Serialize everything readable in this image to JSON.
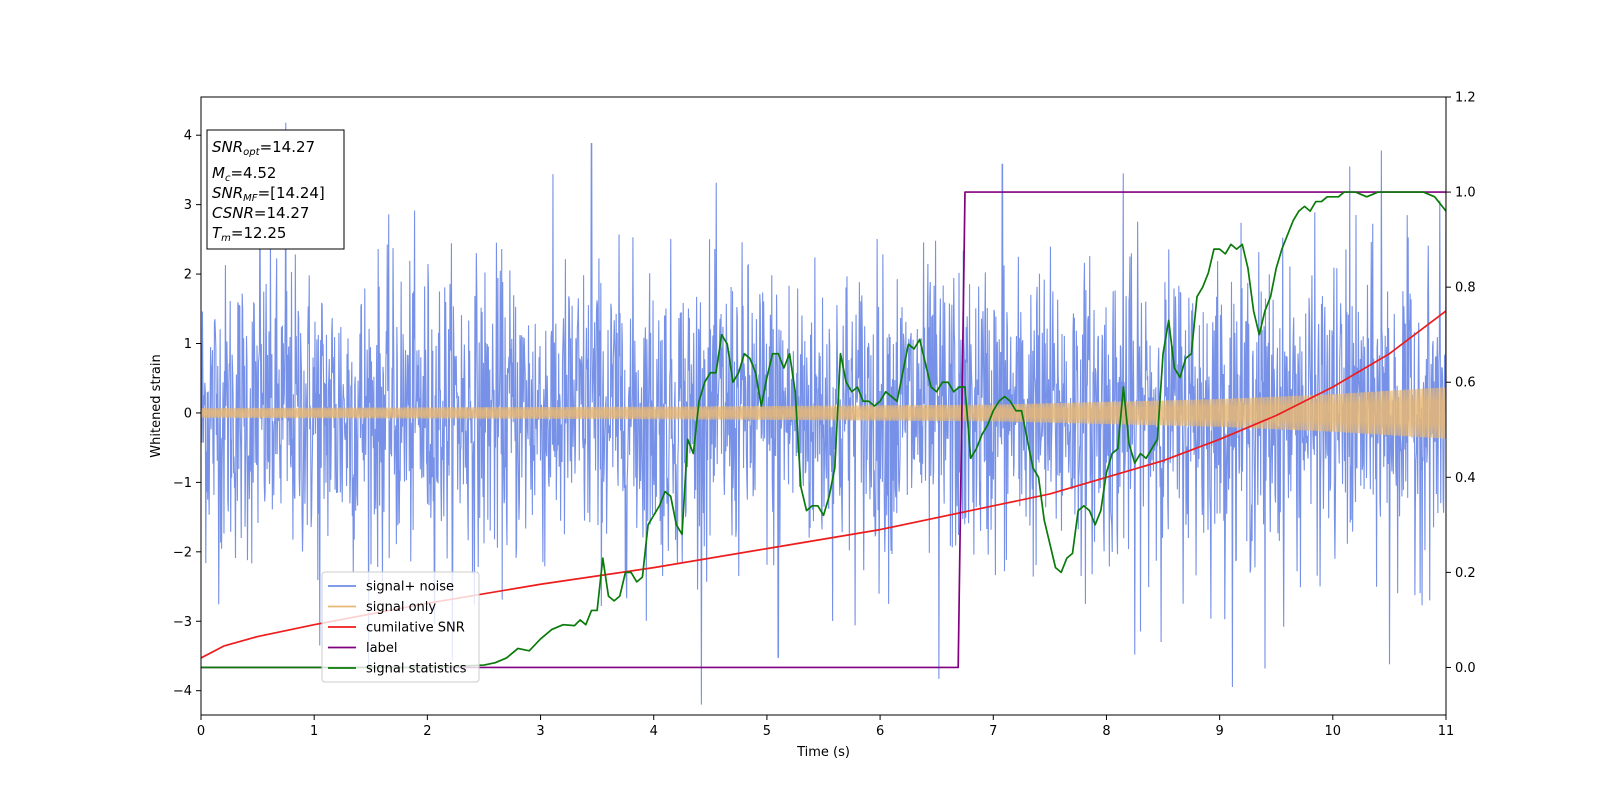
{
  "chart_data": {
    "type": "line",
    "xlabel": "Time (s)",
    "ylabel": "Whitened strain",
    "xlim": [
      0,
      11
    ],
    "ylim": [
      -4.35,
      4.55
    ],
    "y2lim": [
      -0.1,
      1.2
    ],
    "x_ticks": [
      "0",
      "1",
      "2",
      "3",
      "4",
      "5",
      "6",
      "7",
      "8",
      "9",
      "10",
      "11"
    ],
    "y_ticks": [
      "4",
      "3",
      "2",
      "1",
      "0",
      "−1",
      "−2",
      "−3",
      "−4"
    ],
    "y2_ticks": [
      "1.2",
      "1.0",
      "0.8",
      "0.6",
      "0.4",
      "0.2",
      "0.0"
    ],
    "legend_placement": "lower-left",
    "grid": false,
    "info_box": {
      "snr_opt_name": "SNR",
      "snr_opt_sub": "opt",
      "snr_opt_value": "=14.27",
      "mc_name": "M",
      "mc_sub": "c",
      "mc_value": "=4.52",
      "snr_mf_name": "SNR",
      "snr_mf_sub": "MF",
      "snr_mf_value": "=[14.24]",
      "csnr_name": "CSNR",
      "csnr_value": "=14.27",
      "tm_name": "T",
      "tm_sub": "m",
      "tm_value": "=12.25"
    },
    "series": [
      {
        "name": "signal+ noise",
        "axis": "left",
        "color": "#6f8be6",
        "kind": "noise",
        "sigma": 1.0,
        "spikes": [
          [
            0.75,
            4.18
          ],
          [
            0.52,
            3.38
          ],
          [
            3.45,
            3.88
          ],
          [
            7.08,
            3.58
          ],
          [
            8.15,
            3.45
          ],
          [
            10.15,
            3.55
          ],
          [
            10.43,
            3.78
          ],
          [
            11.0,
            3.32
          ],
          [
            6.52,
            -3.83
          ],
          [
            9.4,
            -3.68
          ],
          [
            10.5,
            -3.62
          ],
          [
            1.05,
            -3.35
          ],
          [
            5.1,
            -3.52
          ],
          [
            8.25,
            -3.48
          ]
        ]
      },
      {
        "name": "signal only",
        "axis": "left",
        "color": "#e8b774",
        "kind": "chirp",
        "amp_envelope": [
          [
            0,
            0.07
          ],
          [
            4,
            0.09
          ],
          [
            7,
            0.12
          ],
          [
            9,
            0.2
          ],
          [
            10,
            0.27
          ],
          [
            11,
            0.37
          ]
        ]
      },
      {
        "name": "cumilative SNR",
        "axis": "right",
        "color": "#ee1c1c",
        "x": [
          0,
          0.2,
          0.5,
          1,
          2,
          3,
          4,
          5,
          6,
          7,
          7.5,
          8,
          8.5,
          9,
          9.5,
          10,
          10.5,
          11
        ],
        "y": [
          0.02,
          0.045,
          0.065,
          0.09,
          0.135,
          0.175,
          0.21,
          0.25,
          0.29,
          0.34,
          0.365,
          0.4,
          0.435,
          0.48,
          0.53,
          0.59,
          0.66,
          0.75
        ]
      },
      {
        "name": "label",
        "axis": "right",
        "color": "#800080",
        "x": [
          0,
          6.69,
          6.75,
          11
        ],
        "y": [
          0,
          0,
          1,
          1
        ]
      },
      {
        "name": "signal statistics",
        "axis": "right",
        "color": "#0a7a0a",
        "x": [
          0,
          1,
          2,
          2.5,
          2.6,
          2.7,
          2.8,
          2.9,
          3.0,
          3.1,
          3.2,
          3.3,
          3.35,
          3.4,
          3.45,
          3.5,
          3.55,
          3.6,
          3.65,
          3.7,
          3.75,
          3.8,
          3.85,
          3.9,
          3.95,
          4.0,
          4.05,
          4.1,
          4.15,
          4.2,
          4.25,
          4.3,
          4.35,
          4.4,
          4.45,
          4.5,
          4.55,
          4.6,
          4.65,
          4.7,
          4.75,
          4.8,
          4.85,
          4.9,
          4.95,
          5.0,
          5.05,
          5.1,
          5.15,
          5.2,
          5.25,
          5.3,
          5.35,
          5.4,
          5.45,
          5.5,
          5.55,
          5.6,
          5.65,
          5.7,
          5.75,
          5.8,
          5.85,
          5.9,
          5.95,
          6.0,
          6.05,
          6.1,
          6.15,
          6.2,
          6.25,
          6.3,
          6.35,
          6.4,
          6.45,
          6.5,
          6.55,
          6.6,
          6.65,
          6.7,
          6.75,
          6.8,
          6.85,
          6.9,
          6.95,
          7.0,
          7.05,
          7.1,
          7.15,
          7.2,
          7.25,
          7.3,
          7.35,
          7.4,
          7.45,
          7.5,
          7.55,
          7.6,
          7.65,
          7.7,
          7.75,
          7.8,
          7.85,
          7.9,
          7.95,
          8.0,
          8.05,
          8.1,
          8.15,
          8.2,
          8.25,
          8.3,
          8.35,
          8.4,
          8.45,
          8.5,
          8.55,
          8.6,
          8.65,
          8.7,
          8.75,
          8.8,
          8.85,
          8.9,
          8.95,
          9.0,
          9.05,
          9.1,
          9.15,
          9.2,
          9.25,
          9.3,
          9.35,
          9.4,
          9.45,
          9.5,
          9.55,
          9.6,
          9.65,
          9.7,
          9.75,
          9.8,
          9.85,
          9.9,
          9.95,
          10.0,
          10.05,
          10.1,
          10.15,
          10.2,
          10.3,
          10.4,
          10.5,
          10.6,
          10.7,
          10.8,
          10.9,
          11.0
        ],
        "y": [
          0.0,
          0.0,
          0.0,
          0.005,
          0.01,
          0.02,
          0.04,
          0.035,
          0.06,
          0.08,
          0.09,
          0.088,
          0.1,
          0.09,
          0.12,
          0.12,
          0.23,
          0.15,
          0.14,
          0.15,
          0.2,
          0.2,
          0.18,
          0.19,
          0.3,
          0.32,
          0.34,
          0.37,
          0.36,
          0.3,
          0.28,
          0.48,
          0.45,
          0.56,
          0.6,
          0.62,
          0.62,
          0.7,
          0.68,
          0.6,
          0.62,
          0.66,
          0.65,
          0.62,
          0.55,
          0.61,
          0.66,
          0.66,
          0.63,
          0.66,
          0.58,
          0.38,
          0.33,
          0.34,
          0.34,
          0.32,
          0.36,
          0.42,
          0.66,
          0.6,
          0.58,
          0.59,
          0.56,
          0.56,
          0.55,
          0.56,
          0.58,
          0.57,
          0.56,
          0.62,
          0.68,
          0.67,
          0.69,
          0.64,
          0.59,
          0.58,
          0.6,
          0.6,
          0.58,
          0.59,
          0.59,
          0.44,
          0.46,
          0.49,
          0.51,
          0.54,
          0.56,
          0.57,
          0.56,
          0.54,
          0.54,
          0.48,
          0.42,
          0.4,
          0.31,
          0.26,
          0.21,
          0.2,
          0.23,
          0.24,
          0.33,
          0.34,
          0.33,
          0.3,
          0.33,
          0.41,
          0.45,
          0.46,
          0.59,
          0.47,
          0.43,
          0.45,
          0.44,
          0.46,
          0.48,
          0.66,
          0.73,
          0.63,
          0.61,
          0.65,
          0.66,
          0.78,
          0.8,
          0.83,
          0.88,
          0.88,
          0.87,
          0.89,
          0.88,
          0.89,
          0.84,
          0.75,
          0.7,
          0.75,
          0.78,
          0.84,
          0.88,
          0.91,
          0.94,
          0.96,
          0.97,
          0.96,
          0.98,
          0.98,
          0.99,
          0.99,
          0.99,
          1.0,
          1.0,
          1.0,
          0.99,
          1.0,
          1.0,
          1.0,
          1.0,
          1.0,
          0.99,
          0.96
        ]
      }
    ]
  }
}
